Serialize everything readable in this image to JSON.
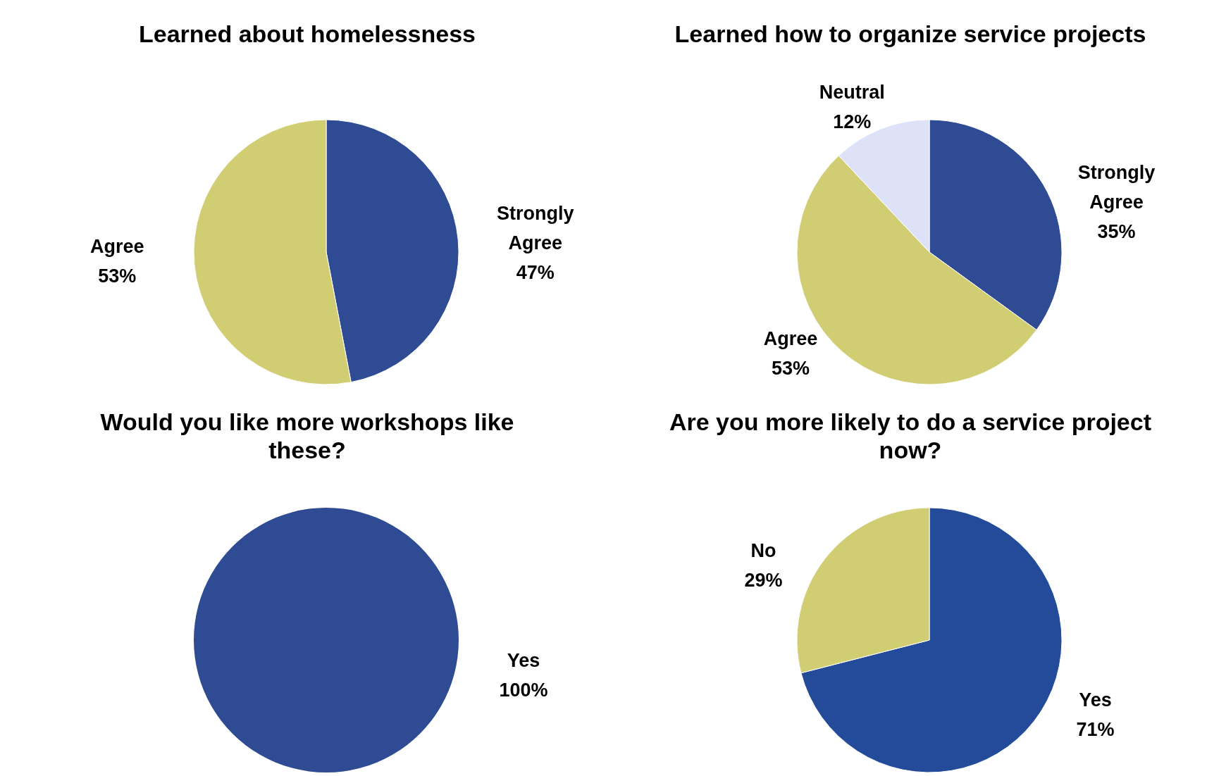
{
  "chart_data": [
    {
      "type": "pie",
      "title": "Learned about homelessness",
      "categories": [
        "Strongly Agree",
        "Agree"
      ],
      "values": [
        47,
        53
      ],
      "value_labels": [
        "47%",
        "53%"
      ],
      "colors": [
        "#2e4b94",
        "#d1cd73"
      ]
    },
    {
      "type": "pie",
      "title": "Learned how to organize service projects",
      "categories": [
        "Strongly Agree",
        "Agree",
        "Neutral"
      ],
      "values": [
        35,
        53,
        12
      ],
      "value_labels": [
        "35%",
        "53%",
        "12%"
      ],
      "colors": [
        "#2e4b94",
        "#d1cd73",
        "#dde2f8"
      ]
    },
    {
      "type": "pie",
      "title": "Would you like more workshops like these?",
      "categories": [
        "Yes"
      ],
      "values": [
        100
      ],
      "value_labels": [
        "100%"
      ],
      "colors": [
        "#2e4b94"
      ]
    },
    {
      "type": "pie",
      "title": "Are you more likely to do a service project now?",
      "categories": [
        "Yes",
        "No"
      ],
      "values": [
        71,
        29
      ],
      "value_labels": [
        "71%",
        "29%"
      ],
      "colors": [
        "#244b9a",
        "#d1cd73"
      ]
    }
  ]
}
